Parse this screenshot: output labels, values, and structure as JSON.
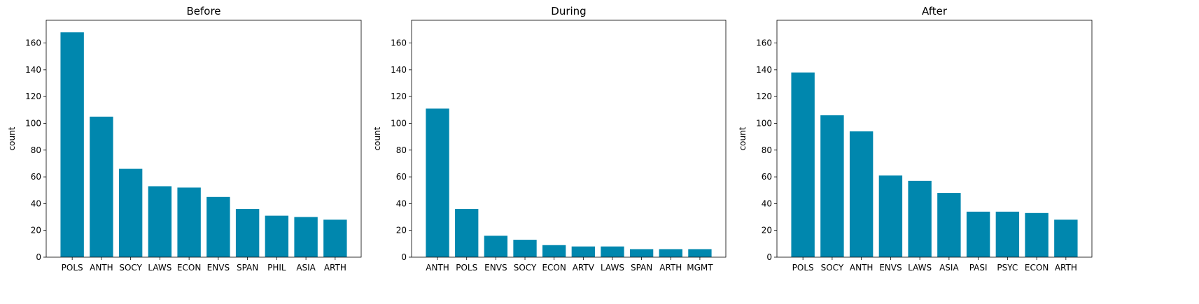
{
  "chart_data": [
    {
      "type": "bar",
      "title": "Before",
      "xlabel": "",
      "ylabel": "count",
      "ylim": [
        0,
        177
      ],
      "yticks": [
        0,
        20,
        40,
        60,
        80,
        100,
        120,
        140,
        160
      ],
      "categories": [
        "POLS",
        "ANTH",
        "SOCY",
        "LAWS",
        "ECON",
        "ENVS",
        "SPAN",
        "PHIL",
        "ASIA",
        "ARTH"
      ],
      "values": [
        168,
        105,
        66,
        53,
        52,
        45,
        36,
        31,
        30,
        28
      ],
      "grid": false,
      "bar_color": "#0087ae"
    },
    {
      "type": "bar",
      "title": "During",
      "xlabel": "",
      "ylabel": "count",
      "ylim": [
        0,
        177
      ],
      "yticks": [
        0,
        20,
        40,
        60,
        80,
        100,
        120,
        140,
        160
      ],
      "categories": [
        "ANTH",
        "POLS",
        "ENVS",
        "SOCY",
        "ECON",
        "ARTV",
        "LAWS",
        "SPAN",
        "ARTH",
        "MGMT"
      ],
      "values": [
        111,
        36,
        16,
        13,
        9,
        8,
        8,
        6,
        6,
        6
      ],
      "grid": false,
      "bar_color": "#0087ae"
    },
    {
      "type": "bar",
      "title": "After",
      "xlabel": "",
      "ylabel": "count",
      "ylim": [
        0,
        177
      ],
      "yticks": [
        0,
        20,
        40,
        60,
        80,
        100,
        120,
        140,
        160
      ],
      "categories": [
        "POLS",
        "SOCY",
        "ANTH",
        "ENVS",
        "LAWS",
        "ASIA",
        "PASI",
        "PSYC",
        "ECON",
        "ARTH"
      ],
      "values": [
        138,
        106,
        94,
        61,
        57,
        48,
        34,
        34,
        33,
        28
      ],
      "grid": false,
      "bar_color": "#0087ae"
    }
  ]
}
